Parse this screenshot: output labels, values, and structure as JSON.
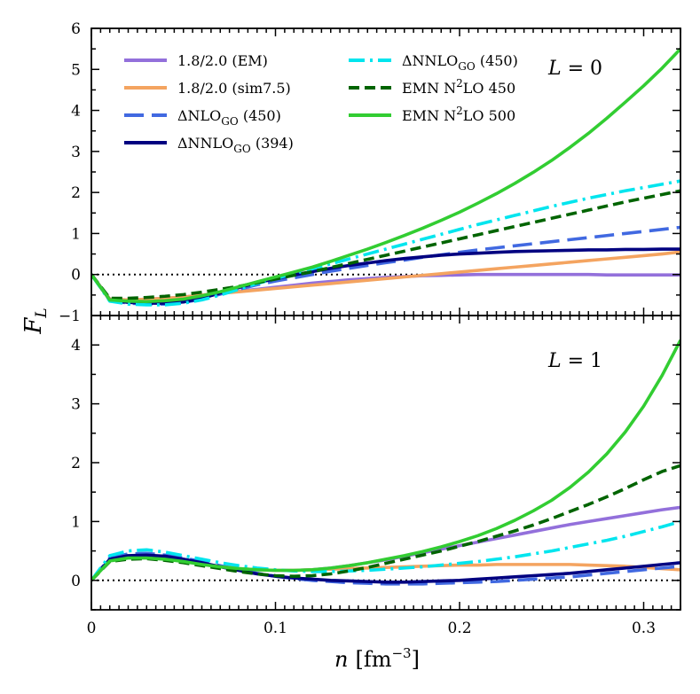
{
  "chart_data": {
    "type": "line",
    "xlabel": {
      "var": "n",
      "unit": "[fm",
      "exp": "−3",
      "close": "]"
    },
    "ylabel": {
      "var": "F",
      "sub": "L"
    },
    "xlim": [
      0,
      0.32
    ],
    "xticks": [
      0,
      0.1,
      0.2,
      0.3
    ],
    "xtick_labels": [
      "0",
      "0.1",
      "0.2",
      "0.3"
    ],
    "reference_line": {
      "y": 0,
      "style": "dotted"
    },
    "legend": {
      "placement": "top-left of upper panel",
      "entries": [
        {
          "id": "em",
          "label_main": "1.8/2.0 (EM)"
        },
        {
          "id": "sim",
          "label_main": "1.8/2.0 (sim7.5)"
        },
        {
          "id": "dnlo",
          "label_pre": "ΔNLO",
          "label_sub": "GO",
          "label_post": " (450)"
        },
        {
          "id": "dn394",
          "label_pre": "ΔNNLO",
          "label_sub": "GO",
          "label_post": " (394)"
        },
        {
          "id": "dn450",
          "label_pre": "ΔNNLO",
          "label_sub": "GO",
          "label_post": " (450)"
        },
        {
          "id": "e450",
          "label_pre": "EMN N",
          "label_sup": "2",
          "label_post": "LO 450"
        },
        {
          "id": "e500",
          "label_pre": "EMN N",
          "label_sup": "2",
          "label_post": "LO 500"
        }
      ]
    },
    "series_styles": {
      "em": {
        "color": "#9370DB",
        "dash": ""
      },
      "sim": {
        "color": "#F4A460",
        "dash": ""
      },
      "dnlo": {
        "color": "#4169E1",
        "dash": "22 9"
      },
      "dn394": {
        "color": "#000080",
        "dash": ""
      },
      "dn450": {
        "color": "#00E5EE",
        "dash": "18 6 3 6"
      },
      "e450": {
        "color": "#006400",
        "dash": "12 6"
      },
      "e500": {
        "color": "#32CD32",
        "dash": ""
      }
    },
    "x": [
      0,
      0.01,
      0.02,
      0.03,
      0.04,
      0.05,
      0.06,
      0.07,
      0.08,
      0.09,
      0.1,
      0.11,
      0.12,
      0.13,
      0.14,
      0.15,
      0.16,
      0.17,
      0.18,
      0.19,
      0.2,
      0.21,
      0.22,
      0.23,
      0.24,
      0.25,
      0.26,
      0.27,
      0.28,
      0.29,
      0.3,
      0.31,
      0.32
    ],
    "panels": [
      {
        "label_var": "L",
        "label_eq": " = 0",
        "ylim": [
          -1,
          6
        ],
        "yticks": [
          -1,
          0,
          1,
          2,
          3,
          4,
          5,
          6
        ],
        "ytick_labels": [
          "−1",
          "0",
          "1",
          "2",
          "3",
          "4",
          "5",
          "6"
        ],
        "series": [
          {
            "id": "em",
            "values": [
              0,
              -0.6,
              -0.62,
              -0.6,
              -0.58,
              -0.55,
              -0.5,
              -0.46,
              -0.41,
              -0.36,
              -0.31,
              -0.26,
              -0.21,
              -0.17,
              -0.13,
              -0.1,
              -0.07,
              -0.05,
              -0.03,
              -0.02,
              -0.01,
              0,
              0,
              0,
              0,
              0,
              0,
              0,
              -0.01,
              -0.01,
              -0.01,
              -0.01,
              -0.01
            ]
          },
          {
            "id": "sim",
            "values": [
              0,
              -0.6,
              -0.62,
              -0.6,
              -0.58,
              -0.55,
              -0.5,
              -0.46,
              -0.42,
              -0.38,
              -0.34,
              -0.3,
              -0.26,
              -0.22,
              -0.18,
              -0.14,
              -0.1,
              -0.06,
              -0.02,
              0.02,
              0.06,
              0.1,
              0.14,
              0.18,
              0.22,
              0.26,
              0.3,
              0.34,
              0.38,
              0.42,
              0.46,
              0.5,
              0.55
            ]
          },
          {
            "id": "dnlo",
            "values": [
              0,
              -0.63,
              -0.7,
              -0.72,
              -0.72,
              -0.68,
              -0.6,
              -0.48,
              -0.36,
              -0.25,
              -0.16,
              -0.08,
              0,
              0.08,
              0.15,
              0.22,
              0.29,
              0.35,
              0.42,
              0.48,
              0.54,
              0.6,
              0.65,
              0.7,
              0.75,
              0.8,
              0.85,
              0.9,
              0.95,
              1.0,
              1.05,
              1.1,
              1.15
            ]
          },
          {
            "id": "dn394",
            "values": [
              0,
              -0.62,
              -0.68,
              -0.7,
              -0.7,
              -0.67,
              -0.58,
              -0.45,
              -0.32,
              -0.2,
              -0.1,
              -0.01,
              0.07,
              0.15,
              0.22,
              0.28,
              0.34,
              0.39,
              0.43,
              0.47,
              0.5,
              0.52,
              0.54,
              0.56,
              0.57,
              0.58,
              0.59,
              0.6,
              0.6,
              0.61,
              0.61,
              0.62,
              0.62
            ]
          },
          {
            "id": "dn450",
            "values": [
              0,
              -0.65,
              -0.72,
              -0.74,
              -0.74,
              -0.7,
              -0.62,
              -0.5,
              -0.36,
              -0.22,
              -0.1,
              0.02,
              0.14,
              0.26,
              0.38,
              0.5,
              0.62,
              0.74,
              0.86,
              0.98,
              1.1,
              1.22,
              1.33,
              1.44,
              1.55,
              1.66,
              1.76,
              1.86,
              1.95,
              2.04,
              2.12,
              2.2,
              2.28
            ]
          },
          {
            "id": "e450",
            "values": [
              0,
              -0.58,
              -0.58,
              -0.56,
              -0.53,
              -0.49,
              -0.43,
              -0.36,
              -0.29,
              -0.2,
              -0.11,
              -0.02,
              0.07,
              0.17,
              0.27,
              0.37,
              0.47,
              0.57,
              0.67,
              0.77,
              0.87,
              0.97,
              1.07,
              1.17,
              1.27,
              1.37,
              1.47,
              1.57,
              1.67,
              1.77,
              1.86,
              1.95,
              2.04
            ]
          },
          {
            "id": "e500",
            "values": [
              0,
              -0.62,
              -0.65,
              -0.66,
              -0.64,
              -0.6,
              -0.52,
              -0.42,
              -0.3,
              -0.18,
              -0.06,
              0.06,
              0.18,
              0.32,
              0.47,
              0.62,
              0.78,
              0.95,
              1.13,
              1.32,
              1.52,
              1.74,
              1.97,
              2.22,
              2.49,
              2.78,
              3.1,
              3.44,
              3.81,
              4.2,
              4.6,
              5.03,
              5.5
            ]
          }
        ]
      },
      {
        "label_var": "L",
        "label_eq": " = 1",
        "ylim": [
          -0.5,
          4.5
        ],
        "yticks": [
          0,
          1,
          2,
          3,
          4
        ],
        "ytick_labels": [
          "0",
          "1",
          "2",
          "3",
          "4"
        ],
        "series": [
          {
            "id": "em",
            "values": [
              0,
              0.35,
              0.4,
              0.4,
              0.37,
              0.33,
              0.28,
              0.24,
              0.2,
              0.18,
              0.17,
              0.17,
              0.18,
              0.21,
              0.25,
              0.3,
              0.35,
              0.41,
              0.47,
              0.53,
              0.59,
              0.65,
              0.71,
              0.77,
              0.83,
              0.89,
              0.95,
              1.0,
              1.05,
              1.1,
              1.15,
              1.2,
              1.24
            ]
          },
          {
            "id": "sim",
            "values": [
              0,
              0.35,
              0.4,
              0.4,
              0.37,
              0.33,
              0.28,
              0.24,
              0.2,
              0.18,
              0.17,
              0.17,
              0.18,
              0.19,
              0.2,
              0.21,
              0.22,
              0.23,
              0.24,
              0.25,
              0.26,
              0.26,
              0.27,
              0.27,
              0.27,
              0.27,
              0.27,
              0.26,
              0.25,
              0.24,
              0.22,
              0.2,
              0.18
            ]
          },
          {
            "id": "dnlo",
            "values": [
              0,
              0.38,
              0.45,
              0.46,
              0.43,
              0.38,
              0.32,
              0.25,
              0.18,
              0.12,
              0.07,
              0.03,
              0.0,
              -0.02,
              -0.04,
              -0.05,
              -0.06,
              -0.06,
              -0.06,
              -0.05,
              -0.04,
              -0.03,
              -0.02,
              0.0,
              0.02,
              0.04,
              0.06,
              0.09,
              0.12,
              0.15,
              0.18,
              0.21,
              0.24
            ]
          },
          {
            "id": "dn394",
            "values": [
              0,
              0.36,
              0.42,
              0.43,
              0.41,
              0.36,
              0.3,
              0.23,
              0.17,
              0.11,
              0.07,
              0.04,
              0.02,
              0.0,
              -0.01,
              -0.02,
              -0.03,
              -0.03,
              -0.02,
              -0.01,
              0.0,
              0.02,
              0.04,
              0.06,
              0.08,
              0.1,
              0.12,
              0.15,
              0.18,
              0.21,
              0.24,
              0.27,
              0.3
            ]
          },
          {
            "id": "dn450",
            "values": [
              0,
              0.42,
              0.5,
              0.52,
              0.48,
              0.42,
              0.36,
              0.3,
              0.25,
              0.21,
              0.18,
              0.16,
              0.15,
              0.15,
              0.16,
              0.17,
              0.19,
              0.21,
              0.23,
              0.26,
              0.29,
              0.32,
              0.36,
              0.4,
              0.45,
              0.5,
              0.56,
              0.62,
              0.68,
              0.75,
              0.83,
              0.91,
              1.0
            ]
          },
          {
            "id": "e450",
            "values": [
              0,
              0.32,
              0.36,
              0.37,
              0.34,
              0.3,
              0.25,
              0.2,
              0.15,
              0.11,
              0.08,
              0.07,
              0.08,
              0.11,
              0.16,
              0.22,
              0.29,
              0.36,
              0.43,
              0.5,
              0.58,
              0.66,
              0.75,
              0.84,
              0.94,
              1.05,
              1.17,
              1.29,
              1.42,
              1.56,
              1.71,
              1.85,
              1.95
            ]
          },
          {
            "id": "e500",
            "values": [
              0,
              0.33,
              0.38,
              0.38,
              0.36,
              0.32,
              0.27,
              0.23,
              0.2,
              0.18,
              0.17,
              0.17,
              0.18,
              0.21,
              0.25,
              0.3,
              0.36,
              0.42,
              0.49,
              0.57,
              0.66,
              0.76,
              0.88,
              1.02,
              1.18,
              1.36,
              1.58,
              1.84,
              2.15,
              2.52,
              2.96,
              3.48,
              4.08
            ]
          }
        ]
      }
    ]
  }
}
